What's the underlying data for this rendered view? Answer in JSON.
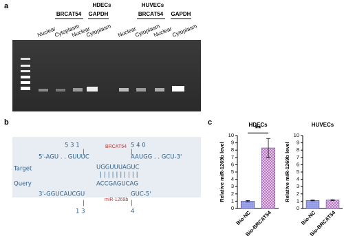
{
  "panels": {
    "a": {
      "label": "a",
      "cells": [
        "HDECs",
        "HUVECs"
      ],
      "genes": [
        "BRCAT54",
        "GAPDH",
        "BRCAT54",
        "GAPDH"
      ],
      "lanes": [
        "Nuclear",
        "Cytoplasm",
        "Nuclear",
        "Cytoplasm",
        "Nuclear",
        "Cytoplasm",
        "Nuclear",
        "Cytoplasm"
      ]
    },
    "b": {
      "label": "b",
      "pos_top": [
        "5 3 1",
        "5 4 0"
      ],
      "target_name": "BRCAT54",
      "row_labels": [
        "Target",
        "Query"
      ],
      "target_left": "5'-AGU . . GUUUC",
      "target_right": "AAUGG . . GCU-3'",
      "target_mid": "UGGUUUAGUC",
      "pairs": "||||||||||",
      "query_mid": "ACCGAGUCAG",
      "query_left": "3'-GGUCAUCGU",
      "query_right": "GUC-5'",
      "query_name": "miR-1269b",
      "pos_bottom": [
        "1 3",
        "4"
      ]
    },
    "c": {
      "label": "c"
    }
  },
  "chart_data": [
    {
      "type": "bar",
      "title": "HDECs",
      "ylabel": "Relative miR-1269b level",
      "categories": [
        "Bio-NC",
        "Bio-BRCAT54"
      ],
      "values": [
        1.0,
        8.3
      ],
      "errors": [
        0.1,
        1.3
      ],
      "colors": [
        "#9fa8ec",
        "#d8a2dc"
      ],
      "ylim": [
        0,
        10
      ],
      "yticks": [
        0,
        1,
        2,
        3,
        4,
        5,
        6,
        7,
        8,
        9,
        10
      ],
      "annotation": "**"
    },
    {
      "type": "bar",
      "title": "HUVECs",
      "ylabel": "Relative miR-1269b level",
      "categories": [
        "Bio-NC",
        "Bio-BRCAT54"
      ],
      "values": [
        1.1,
        1.15
      ],
      "errors": [
        0.05,
        0.05
      ],
      "colors": [
        "#9fa8ec",
        "#d8a2dc"
      ],
      "ylim": [
        0,
        10
      ],
      "yticks": [
        0,
        1,
        2,
        3,
        4,
        5,
        6,
        7,
        8,
        9,
        10
      ]
    }
  ]
}
